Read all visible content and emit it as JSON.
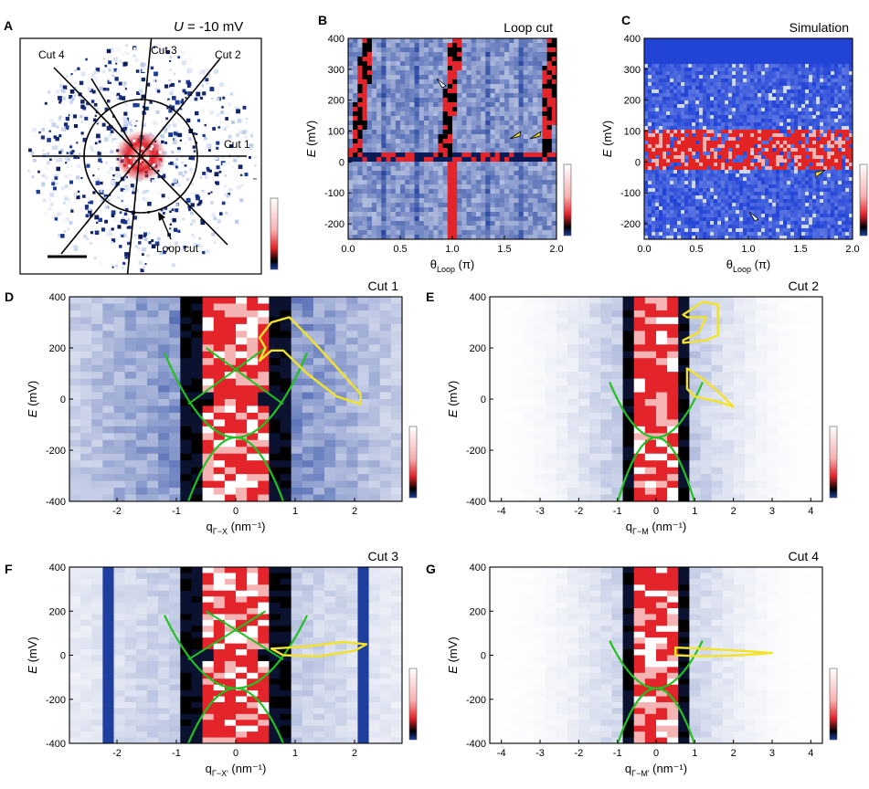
{
  "colors": {
    "blue": "#1f3f9e",
    "white": "#ffffff",
    "red": "#e3242b",
    "black": "#000000",
    "green": "#22c022",
    "yellow": "#f2e22a",
    "frame": "#000000"
  },
  "panels": {
    "A": {
      "letter": "A",
      "title": "U = -10 mV",
      "title_u": "U",
      "title_rest": " = -10 mV",
      "cuts": [
        "Cut 4",
        "Cut 3",
        "Cut 2",
        "Cut 1"
      ],
      "loop_label": "Loop cut"
    },
    "B": {
      "letter": "B",
      "title": "Loop cut",
      "ylabel": "E (mV)",
      "yticks": [
        "400",
        "300",
        "200",
        "100",
        "0",
        "-100",
        "-200"
      ],
      "xticks": [
        "0.0",
        "0.5",
        "1.0",
        "1.5",
        "2.0"
      ],
      "xlabel": "θLoop (π)",
      "xlabel_main": "θ",
      "xlabel_sub": "Loop",
      "xlabel_unit": " (π)"
    },
    "C": {
      "letter": "C",
      "title": "Simulation",
      "ylabel": "E (mV)",
      "yticks": [
        "400",
        "300",
        "200",
        "100",
        "0",
        "-100",
        "-200"
      ],
      "xticks": [
        "0.0",
        "0.5",
        "1.0",
        "1.5",
        "2.0"
      ],
      "xlabel_main": "θ",
      "xlabel_sub": "Loop",
      "xlabel_unit": " (π)"
    },
    "D": {
      "letter": "D",
      "title": "Cut 1",
      "ylabel": "E (mV)",
      "yticks": [
        "400",
        "200",
        "0",
        "-200",
        "-400"
      ],
      "xticks": [
        "-2",
        "-1",
        "0",
        "1",
        "2"
      ],
      "xlabel_main": "q",
      "xlabel_sub": "Γ−X",
      "xlabel_unit": " (nm⁻¹)"
    },
    "E": {
      "letter": "E",
      "title": "Cut 2",
      "ylabel": "E (mV)",
      "yticks": [
        "400",
        "200",
        "0",
        "-200",
        "-400"
      ],
      "xticks": [
        "-4",
        "-3",
        "-2",
        "-1",
        "0",
        "1",
        "2",
        "3",
        "4"
      ],
      "xlabel_main": "q",
      "xlabel_sub": "Γ−M",
      "xlabel_unit": " (nm⁻¹)"
    },
    "F": {
      "letter": "F",
      "title": "Cut 3",
      "ylabel": "E (mV)",
      "yticks": [
        "400",
        "200",
        "0",
        "-200",
        "-400"
      ],
      "xticks": [
        "-2",
        "-1",
        "0",
        "1",
        "2"
      ],
      "xlabel_main": "q",
      "xlabel_sub": "Γ−X'",
      "xlabel_unit": " (nm⁻¹)"
    },
    "G": {
      "letter": "G",
      "title": "Cut 4",
      "ylabel": "E (mV)",
      "yticks": [
        "400",
        "200",
        "0",
        "-200",
        "-400"
      ],
      "xticks": [
        "-4",
        "-3",
        "-2",
        "-1",
        "0",
        "1",
        "2",
        "3",
        "4"
      ],
      "xlabel_main": "q",
      "xlabel_sub": "Γ−M'",
      "xlabel_unit": " (nm⁻¹)"
    }
  },
  "chart_data": [
    {
      "panel": "A",
      "type": "heatmap",
      "title": "U = -10 mV",
      "annotations": [
        "Cut 1",
        "Cut 2",
        "Cut 3",
        "Cut 4",
        "Loop cut"
      ]
    },
    {
      "panel": "B",
      "type": "heatmap",
      "title": "Loop cut",
      "xlabel": "θLoop (π)",
      "ylabel": "E (mV)",
      "xlim": [
        0,
        2
      ],
      "ylim": [
        -250,
        400
      ]
    },
    {
      "panel": "C",
      "type": "heatmap",
      "title": "Simulation",
      "xlabel": "θLoop (π)",
      "ylabel": "E (mV)",
      "xlim": [
        0,
        2
      ],
      "ylim": [
        -250,
        400
      ]
    },
    {
      "panel": "D",
      "type": "heatmap",
      "title": "Cut 1",
      "xlabel": "qΓ−X (nm⁻¹)",
      "ylabel": "E (mV)",
      "xlim": [
        -2.8,
        2.8
      ],
      "ylim": [
        -400,
        400
      ]
    },
    {
      "panel": "E",
      "type": "heatmap",
      "title": "Cut 2",
      "xlabel": "qΓ−M (nm⁻¹)",
      "ylabel": "E (mV)",
      "xlim": [
        -4.3,
        4.3
      ],
      "ylim": [
        -400,
        400
      ]
    },
    {
      "panel": "F",
      "type": "heatmap",
      "title": "Cut 3",
      "xlabel": "qΓ−X' (nm⁻¹)",
      "ylabel": "E (mV)",
      "xlim": [
        -2.8,
        2.8
      ],
      "ylim": [
        -400,
        400
      ]
    },
    {
      "panel": "G",
      "type": "heatmap",
      "title": "Cut 4",
      "xlabel": "qΓ−M' (nm⁻¹)",
      "ylabel": "E (mV)",
      "xlim": [
        -4.3,
        4.3
      ],
      "ylim": [
        -400,
        400
      ]
    }
  ]
}
